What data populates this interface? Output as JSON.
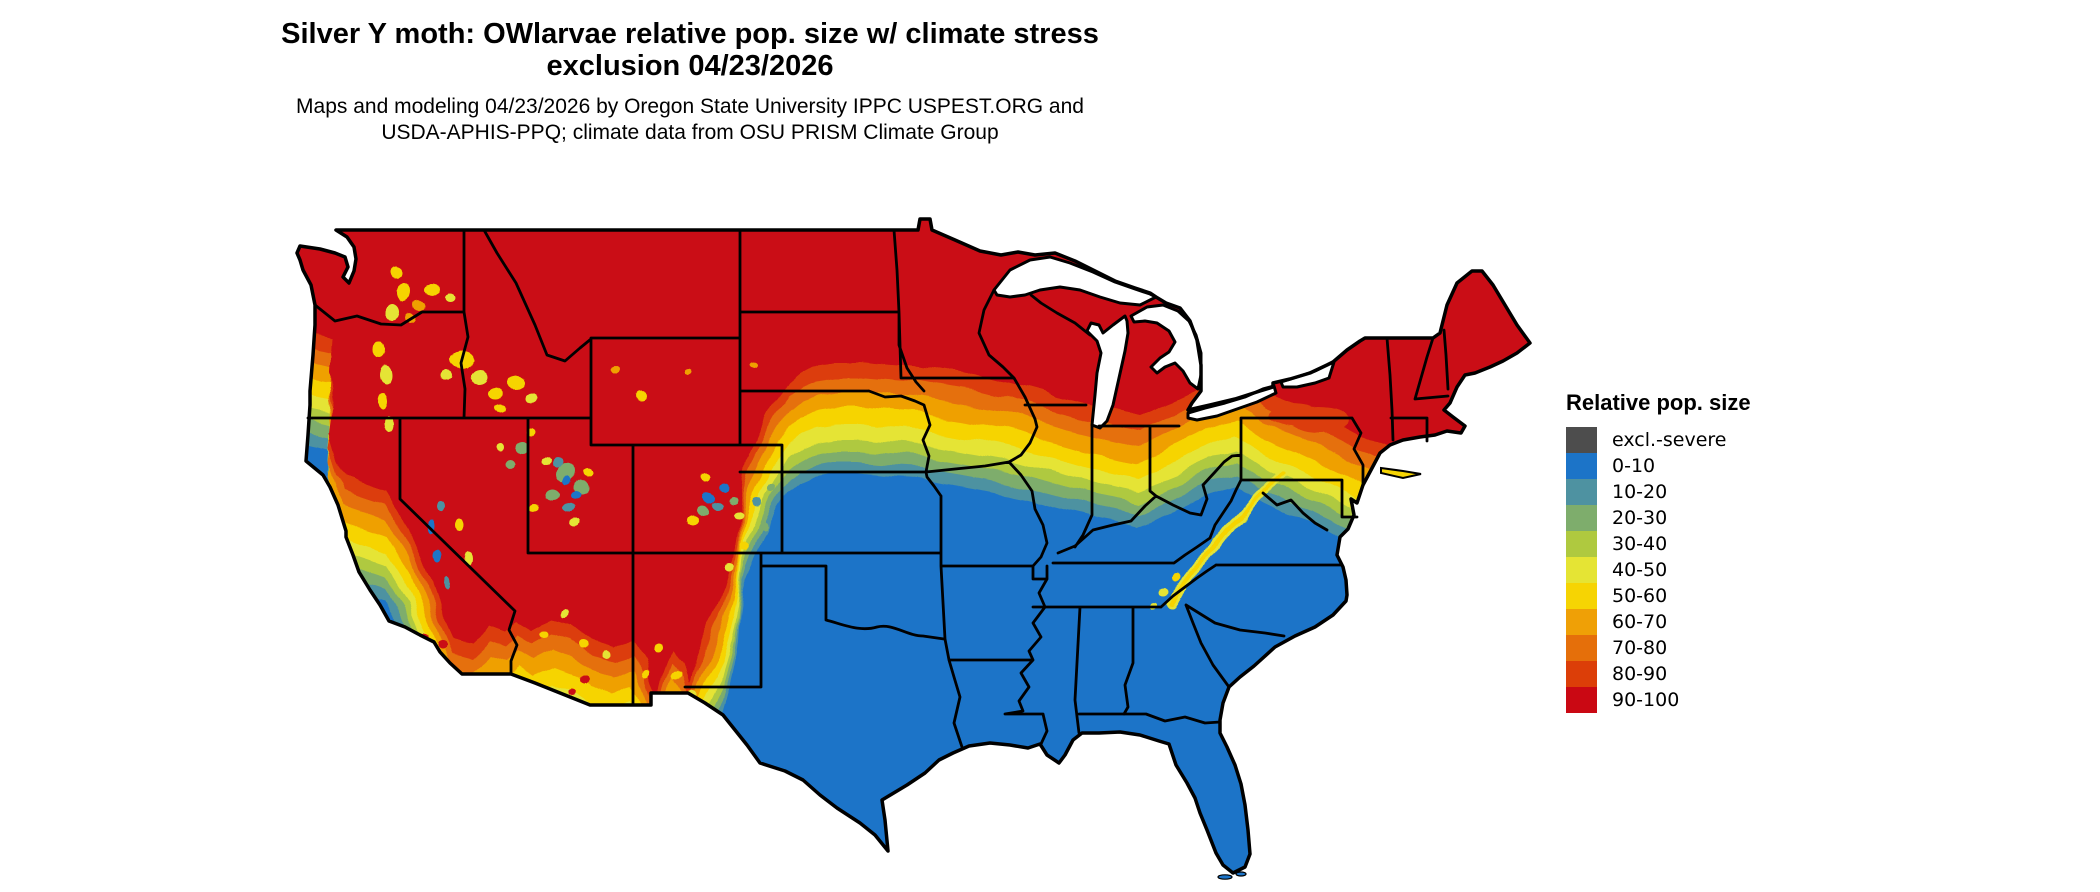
{
  "figure": {
    "title_line1": "Silver Y moth: OWlarvae relative pop. size w/ climate stress",
    "title_line2": "exclusion 04/23/2026",
    "subtitle_line1": "Maps and modeling 04/23/2026 by Oregon State University IPPC USPEST.ORG and",
    "subtitle_line2": "USDA-APHIS-PPQ; climate data from OSU PRISM Climate Group"
  },
  "legend": {
    "title": "Relative pop. size",
    "items": [
      {
        "label": "excl.-severe",
        "color": "#4D4D4D"
      },
      {
        "label": "0-10",
        "color": "#1C74C8"
      },
      {
        "label": "10-20",
        "color": "#4E92A1"
      },
      {
        "label": "20-30",
        "color": "#7EAD6C"
      },
      {
        "label": "30-40",
        "color": "#AFC93F"
      },
      {
        "label": "40-50",
        "color": "#E5E434"
      },
      {
        "label": "50-60",
        "color": "#F6D403"
      },
      {
        "label": "60-70",
        "color": "#EFA006"
      },
      {
        "label": "70-80",
        "color": "#E56F0A"
      },
      {
        "label": "80-90",
        "color": "#DC3E08"
      },
      {
        "label": "90-100",
        "color": "#CA0813"
      }
    ]
  },
  "map": {
    "region": "Contiguous United States",
    "water_color": "#FFFFFF",
    "boundary_color": "#000000"
  }
}
